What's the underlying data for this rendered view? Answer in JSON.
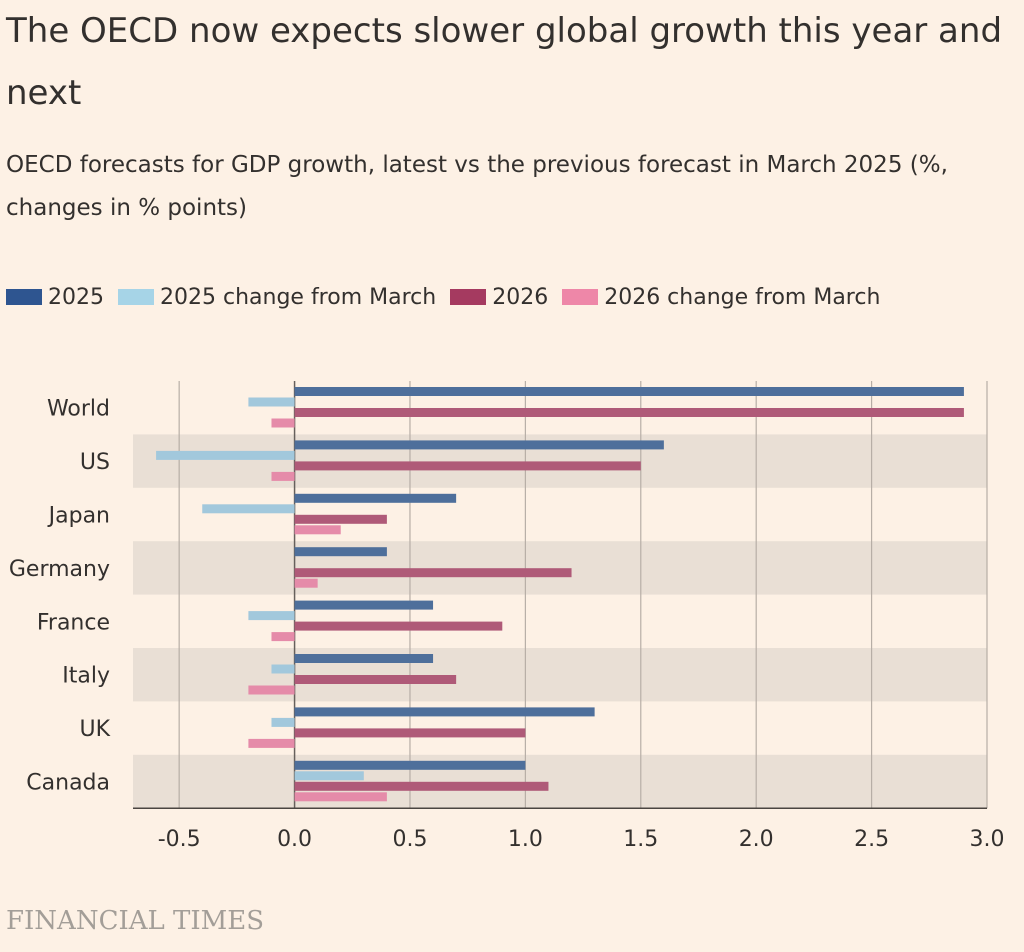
{
  "header": {
    "title": "The OECD now expects slower global growth this year and next",
    "subtitle": "OECD forecasts for GDP growth, latest vs the previous forecast in March 2025 (%, changes in % points)"
  },
  "legend": {
    "items": [
      {
        "label": "2025",
        "color": "#2E5590"
      },
      {
        "label": "2025 change from March",
        "color": "#A6D4E7"
      },
      {
        "label": "2026",
        "color": "#A53A60"
      },
      {
        "label": "2026 change from March",
        "color": "#EE87A8"
      }
    ]
  },
  "source": {
    "label": "FINANCIAL TIMES"
  },
  "chart_data": {
    "type": "bar",
    "orientation": "horizontal",
    "title": "The OECD now expects slower global growth this year and next",
    "subtitle": "OECD forecasts for GDP growth, latest vs the previous forecast in March 2025 (%, changes in % points)",
    "categories": [
      "World",
      "US",
      "Japan",
      "Germany",
      "France",
      "Italy",
      "UK",
      "Canada"
    ],
    "series": [
      {
        "name": "2025",
        "color": "#2E5590",
        "values": [
          2.9,
          1.6,
          0.7,
          0.4,
          0.6,
          0.6,
          1.3,
          1.0
        ]
      },
      {
        "name": "2025 change from March",
        "color": "#A6D4E7",
        "values": [
          -0.2,
          -0.6,
          -0.4,
          0.0,
          -0.2,
          -0.1,
          -0.1,
          0.3
        ]
      },
      {
        "name": "2026",
        "color": "#A53A60",
        "values": [
          2.9,
          1.5,
          0.4,
          1.2,
          0.9,
          0.7,
          1.0,
          1.1
        ]
      },
      {
        "name": "2026 change from March",
        "color": "#EE87A8",
        "values": [
          -0.1,
          -0.1,
          0.2,
          0.1,
          -0.1,
          -0.2,
          -0.2,
          0.4
        ]
      }
    ],
    "xlim": [
      -0.7,
      3.0
    ],
    "xticks": [
      -0.5,
      0.0,
      0.5,
      1.0,
      1.5,
      2.0,
      2.5,
      3.0
    ],
    "xtick_labels": [
      "-0.5",
      "0.0",
      "0.5",
      "1.0",
      "1.5",
      "2.0",
      "2.5",
      "3.0"
    ],
    "grid": true,
    "legend_position": "top-left"
  }
}
